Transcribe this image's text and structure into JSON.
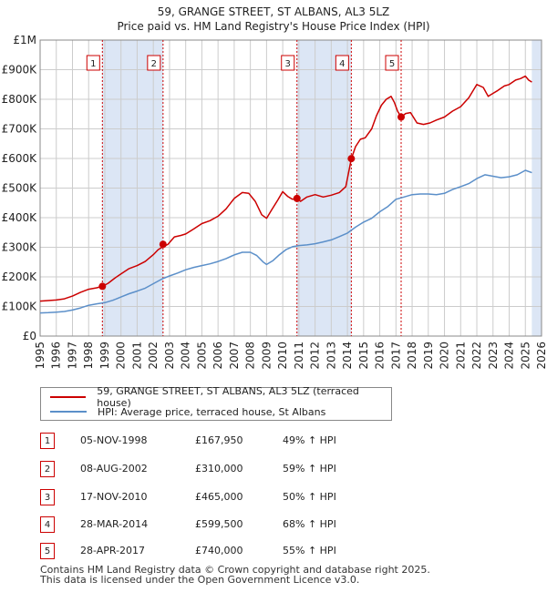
{
  "title_line1": "59, GRANGE STREET, ST ALBANS, AL3 5LZ",
  "title_line2": "Price paid vs. HM Land Registry's House Price Index (HPI)",
  "colors": {
    "property": "#cc0000",
    "hpi": "#5b8fc9",
    "shade": "#dce6f5",
    "grid": "#cccccc"
  },
  "chart_data": {
    "type": "line",
    "ylabel": "",
    "xlabel": "",
    "ylim": [
      0,
      1000000
    ],
    "xlim": [
      1995,
      2026
    ],
    "y_ticks": [
      0,
      100000,
      200000,
      300000,
      400000,
      500000,
      600000,
      700000,
      800000,
      900000,
      1000000
    ],
    "y_tick_labels": [
      "£0",
      "£100K",
      "£200K",
      "£300K",
      "£400K",
      "£500K",
      "£600K",
      "£700K",
      "£800K",
      "£900K",
      "£1M"
    ],
    "x_ticks": [
      1995,
      1996,
      1997,
      1998,
      1999,
      2000,
      2001,
      2002,
      2003,
      2004,
      2005,
      2006,
      2007,
      2008,
      2009,
      2010,
      2011,
      2012,
      2013,
      2014,
      2015,
      2016,
      2017,
      2018,
      2019,
      2020,
      2021,
      2022,
      2023,
      2024,
      2025,
      2026
    ],
    "series": [
      {
        "name": "59, GRANGE STREET, ST ALBANS, AL3 5LZ (terraced house)",
        "x": [
          1995.0,
          1995.5,
          1996.0,
          1996.5,
          1997.0,
          1997.5,
          1998.0,
          1998.5,
          1998.85,
          1999.2,
          1999.6,
          2000.0,
          2000.5,
          2001.0,
          2001.5,
          2002.0,
          2002.3,
          2002.6,
          2002.9,
          2003.3,
          2003.7,
          2004.0,
          2004.5,
          2005.0,
          2005.5,
          2006.0,
          2006.5,
          2007.0,
          2007.5,
          2007.9,
          2008.3,
          2008.7,
          2009.0,
          2009.3,
          2009.7,
          2010.0,
          2010.3,
          2010.6,
          2010.88,
          2011.1,
          2011.5,
          2012.0,
          2012.5,
          2013.0,
          2013.5,
          2013.9,
          2014.24,
          2014.5,
          2014.8,
          2015.1,
          2015.5,
          2015.8,
          2016.1,
          2016.4,
          2016.7,
          2016.9,
          2017.1,
          2017.32,
          2017.6,
          2017.9,
          2018.3,
          2018.7,
          2019.1,
          2019.5,
          2020.0,
          2020.5,
          2021.0,
          2021.5,
          2022.0,
          2022.4,
          2022.7,
          2023.0,
          2023.3,
          2023.7,
          2024.0,
          2024.4,
          2024.7,
          2025.0,
          2025.2,
          2025.4
        ],
        "y": [
          118000,
          120000,
          122000,
          126000,
          135000,
          148000,
          158000,
          163000,
          167950,
          178000,
          195000,
          210000,
          228000,
          238000,
          252000,
          275000,
          292000,
          302000,
          310000,
          335000,
          340000,
          345000,
          362000,
          380000,
          390000,
          405000,
          430000,
          465000,
          485000,
          482000,
          455000,
          410000,
          398000,
          425000,
          460000,
          488000,
          472000,
          462000,
          465000,
          455000,
          470000,
          478000,
          470000,
          476000,
          485000,
          505000,
          599500,
          640000,
          665000,
          670000,
          700000,
          745000,
          780000,
          800000,
          810000,
          790000,
          760000,
          740000,
          752000,
          755000,
          720000,
          715000,
          720000,
          730000,
          740000,
          760000,
          775000,
          805000,
          850000,
          840000,
          810000,
          820000,
          830000,
          845000,
          850000,
          865000,
          870000,
          878000,
          865000,
          858000
        ]
      },
      {
        "name": "HPI: Average price, terraced house, St Albans",
        "x": [
          1995.0,
          1995.5,
          1996.0,
          1996.5,
          1997.0,
          1997.5,
          1998.0,
          1998.5,
          1999.0,
          1999.5,
          2000.0,
          2000.5,
          2001.0,
          2001.5,
          2002.0,
          2002.5,
          2003.0,
          2003.5,
          2004.0,
          2004.5,
          2005.0,
          2005.5,
          2006.0,
          2006.5,
          2007.0,
          2007.5,
          2008.0,
          2008.4,
          2008.8,
          2009.0,
          2009.4,
          2009.8,
          2010.2,
          2010.6,
          2011.0,
          2011.5,
          2012.0,
          2012.5,
          2013.0,
          2013.5,
          2014.0,
          2014.5,
          2015.0,
          2015.5,
          2016.0,
          2016.5,
          2017.0,
          2017.5,
          2018.0,
          2018.5,
          2019.0,
          2019.5,
          2020.0,
          2020.5,
          2021.0,
          2021.5,
          2022.0,
          2022.5,
          2023.0,
          2023.5,
          2024.0,
          2024.5,
          2025.0,
          2025.4
        ],
        "y": [
          78000,
          79000,
          81000,
          83000,
          88000,
          95000,
          104000,
          109000,
          113000,
          121000,
          132000,
          143000,
          152000,
          162000,
          177000,
          192000,
          203000,
          213000,
          224000,
          232000,
          238000,
          244000,
          252000,
          262000,
          274000,
          283000,
          283000,
          272000,
          250000,
          242000,
          255000,
          275000,
          292000,
          302000,
          306000,
          308000,
          312000,
          318000,
          325000,
          336000,
          348000,
          368000,
          385000,
          398000,
          420000,
          438000,
          462000,
          470000,
          478000,
          480000,
          480000,
          478000,
          482000,
          495000,
          505000,
          515000,
          532000,
          545000,
          540000,
          535000,
          538000,
          545000,
          560000,
          552000
        ]
      }
    ],
    "sales": [
      {
        "n": "1",
        "x": 1998.85,
        "price": 167950
      },
      {
        "n": "2",
        "x": 2002.6,
        "price": 310000
      },
      {
        "n": "3",
        "x": 2010.88,
        "price": 465000
      },
      {
        "n": "4",
        "x": 2014.24,
        "price": 599500
      },
      {
        "n": "5",
        "x": 2017.32,
        "price": 740000
      }
    ],
    "shaded_spans": [
      [
        1998.85,
        2002.6
      ],
      [
        2010.88,
        2014.24
      ],
      [
        2017.32,
        2017.32
      ],
      [
        2025.4,
        2026
      ]
    ]
  },
  "legend": {
    "property_label": "59, GRANGE STREET, ST ALBANS, AL3 5LZ (terraced house)",
    "hpi_label": "HPI: Average price, terraced house, St Albans"
  },
  "transactions": [
    {
      "n": "1",
      "date": "05-NOV-1998",
      "price": "£167,950",
      "hpi": "49% ↑ HPI"
    },
    {
      "n": "2",
      "date": "08-AUG-2002",
      "price": "£310,000",
      "hpi": "59% ↑ HPI"
    },
    {
      "n": "3",
      "date": "17-NOV-2010",
      "price": "£465,000",
      "hpi": "50% ↑ HPI"
    },
    {
      "n": "4",
      "date": "28-MAR-2014",
      "price": "£599,500",
      "hpi": "68% ↑ HPI"
    },
    {
      "n": "5",
      "date": "28-APR-2017",
      "price": "£740,000",
      "hpi": "55% ↑ HPI"
    }
  ],
  "footer_line1": "Contains HM Land Registry data © Crown copyright and database right 2025.",
  "footer_line2": "This data is licensed under the Open Government Licence v3.0."
}
